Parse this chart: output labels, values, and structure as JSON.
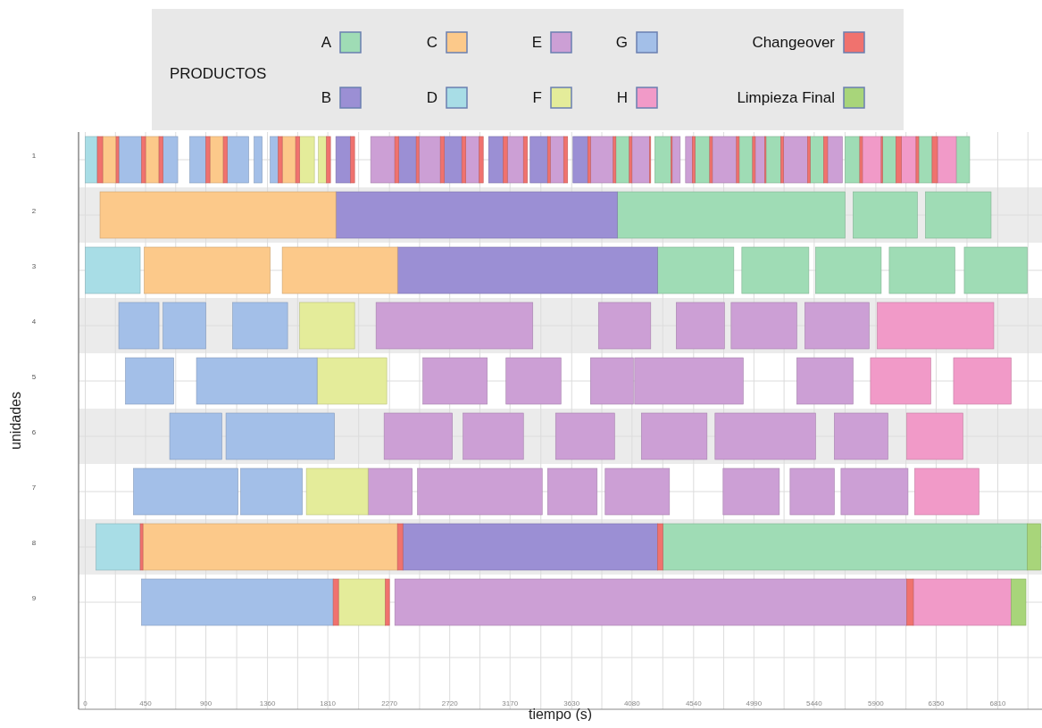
{
  "chart_data": {
    "type": "bar",
    "orientation": "horizontal",
    "xlabel": "tiempo (s)",
    "ylabel": "unidades",
    "legend_title": "PRODUCTOS",
    "legend": "top",
    "grid": true,
    "categories": [
      "1",
      "2",
      "3",
      "4",
      "5",
      "6",
      "7",
      "8",
      "9",
      null
    ],
    "xlim": [
      -50,
      7140
    ],
    "bands": [
      {
        "axis": "y",
        "from": "2",
        "to": "2",
        "color": "#ebebeb"
      },
      {
        "axis": "y",
        "from": "4",
        "to": "4",
        "color": "#ebebeb"
      },
      {
        "axis": "y",
        "from": "6",
        "to": "6",
        "color": "#ebebeb"
      },
      {
        "axis": "y",
        "from": "8",
        "to": "8",
        "color": "#ebebeb"
      }
    ],
    "xticks": [
      0,
      {
        "value": 225,
        "label": null
      },
      450,
      {
        "value": 675,
        "label": null
      },
      900,
      {
        "value": 1130,
        "label": null
      },
      1360,
      {
        "value": 1585,
        "label": null
      },
      1810,
      {
        "value": 2040,
        "label": null
      },
      2270,
      {
        "value": 2495,
        "label": null
      },
      2720,
      {
        "value": 2945,
        "label": null
      },
      3170,
      {
        "value": 3400,
        "label": null
      },
      3630,
      {
        "value": 3855,
        "label": null
      },
      4080,
      {
        "value": 4310,
        "label": null
      },
      4540,
      {
        "value": 4765,
        "label": null
      },
      4990,
      {
        "value": 5215,
        "label": null
      },
      5440,
      {
        "value": 5670,
        "label": null
      },
      5900,
      {
        "value": 6125,
        "label": null
      },
      6350,
      {
        "value": 6580,
        "label": null
      },
      6810,
      {
        "value": 7035,
        "label": null
      }
    ],
    "series": [
      {
        "name": "A",
        "color": "#9fdcb5",
        "base": [
          3960,
          3970,
          4270,
          null,
          null,
          null,
          null,
          4310,
          null,
          null
        ],
        "values": [
          100,
          1700,
          570,
          null,
          null,
          null,
          null,
          2720,
          null,
          null
        ]
      },
      {
        "color": "#9fdcb5",
        "base": [
          4250,
          5730,
          4900,
          null,
          null,
          null,
          null,
          null,
          null,
          null
        ],
        "values": [
          120,
          480,
          500,
          null,
          null,
          null,
          null,
          null,
          null,
          null
        ]
      },
      {
        "color": "#9fdcb5",
        "base": [
          4550,
          6270,
          5450,
          null,
          null,
          null,
          null,
          null,
          null,
          null
        ],
        "values": [
          110,
          490,
          490,
          null,
          null,
          null,
          null,
          null,
          null,
          null
        ]
      },
      {
        "color": "#9fdcb5",
        "base": [
          4880,
          null,
          6000,
          null,
          null,
          null,
          null,
          null,
          null,
          null
        ],
        "values": [
          100,
          null,
          490,
          null,
          null,
          null,
          null,
          null,
          null,
          null
        ]
      },
      {
        "color": "#9fdcb5",
        "base": [
          5080,
          null,
          6560,
          null,
          null,
          null,
          null,
          null,
          null,
          null
        ],
        "values": [
          110,
          null,
          470,
          null,
          null,
          null,
          null,
          null,
          null,
          null
        ]
      },
      {
        "color": "#9fdcb5",
        "base": [
          5410,
          null,
          null,
          null,
          null,
          null,
          null,
          null,
          null,
          null
        ],
        "values": [
          100,
          null,
          null,
          null,
          null,
          null,
          null,
          null,
          null,
          null
        ]
      },
      {
        "color": "#9fdcb5",
        "base": [
          5670,
          null,
          null,
          null,
          null,
          null,
          null,
          null,
          null,
          null
        ],
        "values": [
          110,
          null,
          null,
          null,
          null,
          null,
          null,
          null,
          null,
          null
        ]
      },
      {
        "color": "#9fdcb5",
        "base": [
          5950,
          null,
          null,
          null,
          null,
          null,
          null,
          null,
          null,
          null
        ],
        "values": [
          100,
          null,
          null,
          null,
          null,
          null,
          null,
          null,
          null,
          null
        ]
      },
      {
        "color": "#9fdcb5",
        "base": [
          6220,
          null,
          null,
          null,
          null,
          null,
          null,
          null,
          null,
          null
        ],
        "values": [
          100,
          null,
          null,
          null,
          null,
          null,
          null,
          null,
          null,
          null
        ]
      },
      {
        "color": "#9fdcb5",
        "base": [
          6500,
          null,
          null,
          null,
          null,
          null,
          null,
          null,
          null,
          null
        ],
        "values": [
          100,
          null,
          null,
          null,
          null,
          null,
          null,
          null,
          null,
          null
        ]
      },
      {
        "name": "B",
        "color": "#9b8fd4",
        "base": [
          1870,
          1870,
          2330,
          null,
          null,
          null,
          null,
          2370,
          null,
          null
        ],
        "values": [
          110,
          2100,
          1940,
          null,
          null,
          null,
          null,
          1900,
          null,
          null
        ]
      },
      {
        "color": "#9b8fd4",
        "base": [
          2340,
          null,
          null,
          null,
          null,
          null,
          null,
          null,
          null,
          null
        ],
        "values": [
          130,
          null,
          null,
          null,
          null,
          null,
          null,
          null,
          null,
          null
        ]
      },
      {
        "color": "#9b8fd4",
        "base": [
          2680,
          null,
          null,
          null,
          null,
          null,
          null,
          null,
          null,
          null
        ],
        "values": [
          130,
          null,
          null,
          null,
          null,
          null,
          null,
          null,
          null,
          null
        ]
      },
      {
        "color": "#9b8fd4",
        "base": [
          3010,
          null,
          null,
          null,
          null,
          null,
          null,
          null,
          null,
          null
        ],
        "values": [
          110,
          null,
          null,
          null,
          null,
          null,
          null,
          null,
          null,
          null
        ]
      },
      {
        "color": "#9b8fd4",
        "base": [
          3320,
          null,
          null,
          null,
          null,
          null,
          null,
          null,
          null,
          null
        ],
        "values": [
          130,
          null,
          null,
          null,
          null,
          null,
          null,
          null,
          null,
          null
        ]
      },
      {
        "color": "#9b8fd4",
        "base": [
          3640,
          null,
          null,
          null,
          null,
          null,
          null,
          null,
          null,
          null
        ],
        "values": [
          110,
          null,
          null,
          null,
          null,
          null,
          null,
          null,
          null,
          null
        ]
      },
      {
        "name": "C",
        "color": "#fcc98a",
        "base": [
          130,
          110,
          440,
          null,
          null,
          null,
          null,
          430,
          null,
          null
        ],
        "values": [
          100,
          1760,
          940,
          null,
          null,
          null,
          null,
          1900,
          null,
          null
        ]
      },
      {
        "color": "#fcc98a",
        "base": [
          450,
          null,
          1470,
          null,
          null,
          null,
          null,
          null,
          null,
          null
        ],
        "values": [
          100,
          null,
          860,
          null,
          null,
          null,
          null,
          null,
          null,
          null
        ]
      },
      {
        "color": "#fcc98a",
        "base": [
          930,
          null,
          null,
          null,
          null,
          null,
          null,
          null,
          null,
          null
        ],
        "values": [
          100,
          null,
          null,
          null,
          null,
          null,
          null,
          null,
          null,
          null
        ]
      },
      {
        "color": "#fcc98a",
        "base": [
          1470,
          null,
          null,
          null,
          null,
          null,
          null,
          null,
          null,
          null
        ],
        "values": [
          100,
          null,
          null,
          null,
          null,
          null,
          null,
          null,
          null,
          null
        ]
      },
      {
        "name": "D",
        "color": "#a8dde6",
        "base": [
          0,
          null,
          0,
          null,
          null,
          null,
          null,
          80,
          null,
          null
        ],
        "values": [
          90,
          null,
          410,
          null,
          null,
          null,
          null,
          330,
          null,
          null
        ]
      },
      {
        "name": "E",
        "color": "#cc9fd5",
        "base": [
          2130,
          null,
          null,
          2170,
          2520,
          2230,
          2110,
          null,
          2310,
          null
        ],
        "values": [
          180,
          null,
          null,
          1170,
          480,
          510,
          330,
          null,
          3820,
          null
        ]
      },
      {
        "color": "#cc9fd5",
        "base": [
          2490,
          null,
          null,
          3830,
          3140,
          2820,
          2480,
          null,
          null,
          null
        ],
        "values": [
          160,
          null,
          null,
          390,
          410,
          450,
          930,
          null,
          null,
          null
        ]
      },
      {
        "color": "#cc9fd5",
        "base": [
          2840,
          null,
          null,
          4410,
          3770,
          3510,
          3450,
          null,
          null,
          null
        ],
        "values": [
          100,
          null,
          null,
          360,
          320,
          440,
          370,
          null,
          null,
          null
        ]
      },
      {
        "color": "#cc9fd5",
        "base": [
          3150,
          null,
          null,
          4820,
          4100,
          4150,
          3880,
          null,
          null,
          null
        ],
        "values": [
          120,
          null,
          null,
          490,
          810,
          490,
          480,
          null,
          null,
          null
        ]
      },
      {
        "color": "#cc9fd5",
        "base": [
          3470,
          null,
          null,
          5370,
          5310,
          4700,
          4760,
          null,
          null,
          null
        ],
        "values": [
          100,
          null,
          null,
          480,
          420,
          750,
          420,
          null,
          null,
          null
        ]
      },
      {
        "color": "#cc9fd5",
        "base": [
          3770,
          null,
          null,
          null,
          null,
          5590,
          5260,
          null,
          null,
          null
        ],
        "values": [
          170,
          null,
          null,
          null,
          null,
          400,
          330,
          null,
          null,
          null
        ]
      },
      {
        "color": "#cc9fd5",
        "base": [
          4080,
          null,
          null,
          null,
          null,
          null,
          5640,
          null,
          null,
          null
        ],
        "values": [
          130,
          null,
          null,
          null,
          null,
          null,
          500,
          null,
          null,
          null
        ]
      },
      {
        "color": "#cc9fd5",
        "base": [
          4380,
          null,
          null,
          null,
          null,
          null,
          null,
          null,
          null,
          null
        ],
        "values": [
          60,
          null,
          null,
          null,
          null,
          null,
          null,
          null,
          null,
          null
        ]
      },
      {
        "color": "#cc9fd5",
        "base": [
          4480,
          null,
          null,
          null,
          null,
          null,
          null,
          null,
          null,
          null
        ],
        "values": [
          50,
          null,
          null,
          null,
          null,
          null,
          null,
          null,
          null,
          null
        ]
      },
      {
        "color": "#cc9fd5",
        "base": [
          4680,
          null,
          null,
          null,
          null,
          null,
          null,
          null,
          null,
          null
        ],
        "values": [
          180,
          null,
          null,
          null,
          null,
          null,
          null,
          null,
          null,
          null
        ]
      },
      {
        "color": "#cc9fd5",
        "base": [
          5000,
          null,
          null,
          null,
          null,
          null,
          null,
          null,
          null,
          null
        ],
        "values": [
          70,
          null,
          null,
          null,
          null,
          null,
          null,
          null,
          null,
          null
        ]
      },
      {
        "color": "#cc9fd5",
        "base": [
          5210,
          null,
          null,
          null,
          null,
          null,
          null,
          null,
          null,
          null
        ],
        "values": [
          180,
          null,
          null,
          null,
          null,
          null,
          null,
          null,
          null,
          null
        ]
      },
      {
        "color": "#cc9fd5",
        "base": [
          5540,
          null,
          null,
          null,
          null,
          null,
          null,
          null,
          null,
          null
        ],
        "values": [
          110,
          null,
          null,
          null,
          null,
          null,
          null,
          null,
          null,
          null
        ]
      },
      {
        "name": "F",
        "color": "#e4ec9a",
        "base": [
          1600,
          null,
          null,
          1600,
          1730,
          null,
          1650,
          null,
          1890,
          null
        ],
        "values": [
          110,
          null,
          null,
          410,
          520,
          null,
          460,
          null,
          350,
          null
        ]
      },
      {
        "color": "#e4ec9a",
        "base": [
          1740,
          null,
          null,
          null,
          null,
          null,
          null,
          null,
          null,
          null
        ],
        "values": [
          60,
          null,
          null,
          null,
          null,
          null,
          null,
          null,
          null,
          null
        ]
      },
      {
        "name": "G",
        "color": "#a3bfe8",
        "base": [
          250,
          null,
          null,
          250,
          300,
          630,
          360,
          null,
          420,
          null
        ],
        "values": [
          170,
          null,
          null,
          300,
          360,
          390,
          780,
          null,
          1430,
          null
        ]
      },
      {
        "color": "#a3bfe8",
        "base": [
          580,
          null,
          null,
          580,
          830,
          1050,
          1160,
          null,
          null,
          null
        ],
        "values": [
          110,
          null,
          null,
          320,
          900,
          810,
          460,
          null,
          null,
          null
        ]
      },
      {
        "color": "#a3bfe8",
        "base": [
          780,
          null,
          null,
          1100,
          null,
          null,
          null,
          null,
          null,
          null
        ],
        "values": [
          120,
          null,
          null,
          410,
          null,
          null,
          null,
          null,
          null,
          null
        ]
      },
      {
        "color": "#a3bfe8",
        "base": [
          1060,
          null,
          null,
          null,
          null,
          null,
          null,
          null,
          null,
          null
        ],
        "values": [
          160,
          null,
          null,
          null,
          null,
          null,
          null,
          null,
          null,
          null
        ]
      },
      {
        "color": "#a3bfe8",
        "base": [
          1260,
          null,
          null,
          null,
          null,
          null,
          null,
          null,
          null,
          null
        ],
        "values": [
          60,
          null,
          null,
          null,
          null,
          null,
          null,
          null,
          null,
          null
        ]
      },
      {
        "color": "#a3bfe8",
        "base": [
          1380,
          null,
          null,
          null,
          null,
          null,
          null,
          null,
          null,
          null
        ],
        "values": [
          60,
          null,
          null,
          null,
          null,
          null,
          null,
          null,
          null,
          null
        ]
      },
      {
        "name": "H",
        "color": "#f19ac8",
        "base": [
          5800,
          null,
          null,
          5910,
          5860,
          6130,
          6190,
          null,
          6180,
          null
        ],
        "values": [
          140,
          null,
          null,
          870,
          450,
          420,
          480,
          null,
          730,
          null
        ]
      },
      {
        "color": "#f19ac8",
        "base": [
          6090,
          null,
          null,
          null,
          6480,
          null,
          null,
          null,
          null,
          null
        ],
        "values": [
          110,
          null,
          null,
          null,
          430,
          null,
          null,
          null,
          null,
          null
        ]
      },
      {
        "color": "#f19ac8",
        "base": [
          6360,
          null,
          null,
          null,
          null,
          null,
          null,
          null,
          null,
          null
        ],
        "values": [
          140,
          null,
          null,
          null,
          null,
          null,
          null,
          null,
          null,
          null
        ]
      },
      {
        "name": "Changeover",
        "color": "#f0726e",
        "base": [
          90,
          null,
          null,
          null,
          null,
          null,
          null,
          410,
          1850,
          null
        ],
        "values": [
          40,
          null,
          null,
          null,
          null,
          null,
          null,
          20,
          40,
          null
        ]
      },
      {
        "color": "#f0726e",
        "base": [
          230,
          null,
          null,
          null,
          null,
          null,
          null,
          2330,
          2240,
          null
        ],
        "values": [
          20,
          null,
          null,
          null,
          null,
          null,
          null,
          40,
          30,
          null
        ]
      },
      {
        "color": "#f0726e",
        "base": [
          420,
          null,
          null,
          null,
          null,
          null,
          null,
          4270,
          6130,
          null
        ],
        "values": [
          30,
          null,
          null,
          null,
          null,
          null,
          null,
          40,
          50,
          null
        ]
      },
      {
        "color": "#f0726e",
        "base": [
          550,
          null,
          null,
          null,
          null,
          null,
          null,
          null,
          null,
          null
        ],
        "values": [
          30,
          null,
          null,
          null,
          null,
          null,
          null,
          null,
          null,
          null
        ]
      },
      {
        "color": "#f0726e",
        "base": [
          900,
          null,
          null,
          null,
          null,
          null,
          null,
          null,
          null,
          null
        ],
        "values": [
          30,
          null,
          null,
          null,
          null,
          null,
          null,
          null,
          null,
          null
        ]
      },
      {
        "color": "#f0726e",
        "base": [
          1030,
          null,
          null,
          null,
          null,
          null,
          null,
          null,
          null,
          null
        ],
        "values": [
          30,
          null,
          null,
          null,
          null,
          null,
          null,
          null,
          null,
          null
        ]
      },
      {
        "color": "#f0726e",
        "base": [
          1440,
          null,
          null,
          null,
          null,
          null,
          null,
          null,
          null,
          null
        ],
        "values": [
          30,
          null,
          null,
          null,
          null,
          null,
          null,
          null,
          null,
          null
        ]
      },
      {
        "color": "#f0726e",
        "base": [
          1570,
          null,
          null,
          null,
          null,
          null,
          null,
          null,
          null,
          null
        ],
        "values": [
          30,
          null,
          null,
          null,
          null,
          null,
          null,
          null,
          null,
          null
        ]
      },
      {
        "color": "#f0726e",
        "base": [
          1800,
          null,
          null,
          null,
          null,
          null,
          null,
          null,
          null,
          null
        ],
        "values": [
          30,
          null,
          null,
          null,
          null,
          null,
          null,
          null,
          null,
          null
        ]
      },
      {
        "color": "#f0726e",
        "base": [
          1980,
          null,
          null,
          null,
          null,
          null,
          null,
          null,
          null,
          null
        ],
        "values": [
          30,
          null,
          null,
          null,
          null,
          null,
          null,
          null,
          null,
          null
        ]
      },
      {
        "color": "#f0726e",
        "base": [
          2310,
          null,
          null,
          null,
          null,
          null,
          null,
          null,
          null,
          null
        ],
        "values": [
          30,
          null,
          null,
          null,
          null,
          null,
          null,
          null,
          null,
          null
        ]
      },
      {
        "color": "#f0726e",
        "base": [
          2470,
          null,
          null,
          null,
          null,
          null,
          null,
          null,
          null,
          null
        ],
        "values": [
          20,
          null,
          null,
          null,
          null,
          null,
          null,
          null,
          null,
          null
        ]
      },
      {
        "color": "#f0726e",
        "base": [
          2650,
          null,
          null,
          null,
          null,
          null,
          null,
          null,
          null,
          null
        ],
        "values": [
          30,
          null,
          null,
          null,
          null,
          null,
          null,
          null,
          null,
          null
        ]
      },
      {
        "color": "#f0726e",
        "base": [
          2810,
          null,
          null,
          null,
          null,
          null,
          null,
          null,
          null,
          null
        ],
        "values": [
          30,
          null,
          null,
          null,
          null,
          null,
          null,
          null,
          null,
          null
        ]
      },
      {
        "color": "#f0726e",
        "base": [
          2940,
          null,
          null,
          null,
          null,
          null,
          null,
          null,
          null,
          null
        ],
        "values": [
          30,
          null,
          null,
          null,
          null,
          null,
          null,
          null,
          null,
          null
        ]
      },
      {
        "color": "#f0726e",
        "base": [
          3120,
          null,
          null,
          null,
          null,
          null,
          null,
          null,
          null,
          null
        ],
        "values": [
          30,
          null,
          null,
          null,
          null,
          null,
          null,
          null,
          null,
          null
        ]
      },
      {
        "color": "#f0726e",
        "base": [
          3270,
          null,
          null,
          null,
          null,
          null,
          null,
          null,
          null,
          null
        ],
        "values": [
          30,
          null,
          null,
          null,
          null,
          null,
          null,
          null,
          null,
          null
        ]
      },
      {
        "color": "#f0726e",
        "base": [
          3450,
          null,
          null,
          null,
          null,
          null,
          null,
          null,
          null,
          null
        ],
        "values": [
          20,
          null,
          null,
          null,
          null,
          null,
          null,
          null,
          null,
          null
        ]
      },
      {
        "color": "#f0726e",
        "base": [
          3570,
          null,
          null,
          null,
          null,
          null,
          null,
          null,
          null,
          null
        ],
        "values": [
          30,
          null,
          null,
          null,
          null,
          null,
          null,
          null,
          null,
          null
        ]
      },
      {
        "color": "#f0726e",
        "base": [
          3750,
          null,
          null,
          null,
          null,
          null,
          null,
          null,
          null,
          null
        ],
        "values": [
          20,
          null,
          null,
          null,
          null,
          null,
          null,
          null,
          null,
          null
        ]
      },
      {
        "color": "#f0726e",
        "base": [
          3940,
          null,
          null,
          null,
          null,
          null,
          null,
          null,
          null,
          null
        ],
        "values": [
          20,
          null,
          null,
          null,
          null,
          null,
          null,
          null,
          null,
          null
        ]
      },
      {
        "color": "#f0726e",
        "base": [
          4060,
          null,
          null,
          null,
          null,
          null,
          null,
          null,
          null,
          null
        ],
        "values": [
          20,
          null,
          null,
          null,
          null,
          null,
          null,
          null,
          null,
          null
        ]
      },
      {
        "color": "#f0726e",
        "base": [
          4210,
          null,
          null,
          null,
          null,
          null,
          null,
          null,
          null,
          null
        ],
        "values": [
          10,
          null,
          null,
          null,
          null,
          null,
          null,
          null,
          null,
          null
        ]
      },
      {
        "color": "#f0726e",
        "base": [
          4370,
          null,
          null,
          null,
          null,
          null,
          null,
          null,
          null,
          null
        ],
        "values": [
          10,
          null,
          null,
          null,
          null,
          null,
          null,
          null,
          null,
          null
        ]
      },
      {
        "color": "#f0726e",
        "base": [
          4530,
          null,
          null,
          null,
          null,
          null,
          null,
          null,
          null,
          null
        ],
        "values": [
          20,
          null,
          null,
          null,
          null,
          null,
          null,
          null,
          null,
          null
        ]
      },
      {
        "color": "#f0726e",
        "base": [
          4660,
          null,
          null,
          null,
          null,
          null,
          null,
          null,
          null,
          null
        ],
        "values": [
          20,
          null,
          null,
          null,
          null,
          null,
          null,
          null,
          null,
          null
        ]
      },
      {
        "color": "#f0726e",
        "base": [
          4860,
          null,
          null,
          null,
          null,
          null,
          null,
          null,
          null,
          null
        ],
        "values": [
          20,
          null,
          null,
          null,
          null,
          null,
          null,
          null,
          null,
          null
        ]
      },
      {
        "color": "#f0726e",
        "base": [
          4980,
          null,
          null,
          null,
          null,
          null,
          null,
          null,
          null,
          null
        ],
        "values": [
          20,
          null,
          null,
          null,
          null,
          null,
          null,
          null,
          null,
          null
        ]
      },
      {
        "color": "#f0726e",
        "base": [
          5070,
          null,
          null,
          null,
          null,
          null,
          null,
          null,
          null,
          null
        ],
        "values": [
          10,
          null,
          null,
          null,
          null,
          null,
          null,
          null,
          null,
          null
        ]
      },
      {
        "color": "#f0726e",
        "base": [
          5190,
          null,
          null,
          null,
          null,
          null,
          null,
          null,
          null,
          null
        ],
        "values": [
          20,
          null,
          null,
          null,
          null,
          null,
          null,
          null,
          null,
          null
        ]
      },
      {
        "color": "#f0726e",
        "base": [
          5390,
          null,
          null,
          null,
          null,
          null,
          null,
          null,
          null,
          null
        ],
        "values": [
          20,
          null,
          null,
          null,
          null,
          null,
          null,
          null,
          null,
          null
        ]
      },
      {
        "color": "#f0726e",
        "base": [
          5510,
          null,
          null,
          null,
          null,
          null,
          null,
          null,
          null,
          null
        ],
        "values": [
          30,
          null,
          null,
          null,
          null,
          null,
          null,
          null,
          null,
          null
        ]
      },
      {
        "color": "#f0726e",
        "base": [
          5780,
          null,
          null,
          null,
          null,
          null,
          null,
          null,
          null,
          null
        ],
        "values": [
          20,
          null,
          null,
          null,
          null,
          null,
          null,
          null,
          null,
          null
        ]
      },
      {
        "color": "#f0726e",
        "base": [
          5940,
          null,
          null,
          null,
          null,
          null,
          null,
          null,
          null,
          null
        ],
        "values": [
          10,
          null,
          null,
          null,
          null,
          null,
          null,
          null,
          null,
          null
        ]
      },
      {
        "color": "#f0726e",
        "base": [
          6050,
          null,
          null,
          null,
          null,
          null,
          null,
          null,
          null,
          null
        ],
        "values": [
          40,
          null,
          null,
          null,
          null,
          null,
          null,
          null,
          null,
          null
        ]
      },
      {
        "color": "#f0726e",
        "base": [
          6200,
          null,
          null,
          null,
          null,
          null,
          null,
          null,
          null,
          null
        ],
        "values": [
          20,
          null,
          null,
          null,
          null,
          null,
          null,
          null,
          null,
          null
        ]
      },
      {
        "color": "#f0726e",
        "base": [
          6320,
          null,
          null,
          null,
          null,
          null,
          null,
          null,
          null,
          null
        ],
        "values": [
          40,
          null,
          null,
          null,
          null,
          null,
          null,
          null,
          null,
          null
        ]
      },
      {
        "name": "Limpieza Final",
        "color": "#a8d57a",
        "base": [
          null,
          null,
          null,
          null,
          null,
          null,
          null,
          7030,
          6910,
          null
        ],
        "values": [
          null,
          null,
          null,
          null,
          null,
          null,
          null,
          100,
          110,
          null
        ]
      }
    ]
  }
}
